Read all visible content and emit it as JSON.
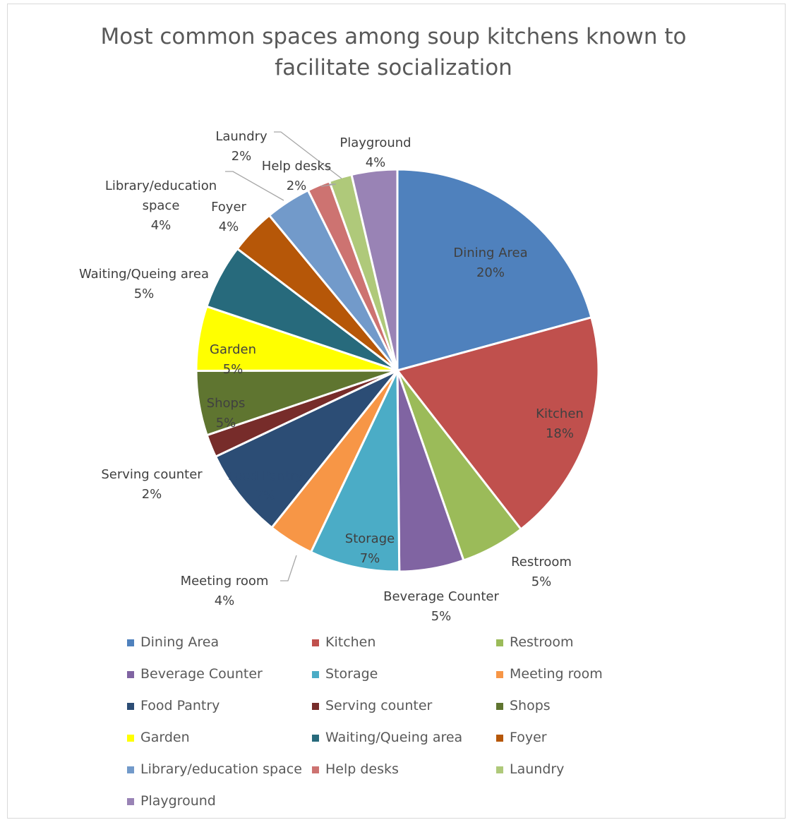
{
  "title_line1": "Most common spaces among soup kitchens known to",
  "title_line2": "facilitate socialization",
  "chart_data": {
    "type": "pie",
    "title": "Most common spaces among soup kitchens known to facilitate socialization",
    "legend_position": "bottom",
    "categories": [
      "Dining Area",
      "Kitchen",
      "Restroom",
      "Beverage Counter",
      "Storage",
      "Meeting room",
      "Food Pantry",
      "Serving counter",
      "Shops",
      "Garden",
      "Waiting/Queing area",
      "Foyer",
      "Library/education space",
      "Help desks",
      "Laundry",
      "Playground"
    ],
    "values": [
      20.4,
      18.4,
      5.1,
      5.1,
      7.1,
      3.6,
      7.1,
      1.8,
      5.1,
      5.1,
      5.1,
      3.6,
      3.6,
      1.8,
      1.8,
      3.6
    ],
    "data_labels": [
      {
        "name": "Dining Area",
        "pct": "20%"
      },
      {
        "name": "Kitchen",
        "pct": "18%"
      },
      {
        "name": "Restroom",
        "pct": "5%"
      },
      {
        "name": "Beverage Counter",
        "pct": "5%"
      },
      {
        "name": "Storage",
        "pct": "7%"
      },
      {
        "name": "Meeting room",
        "pct": "4%"
      },
      {
        "name": "Food Pantry",
        "pct": "7%"
      },
      {
        "name": "Serving counter",
        "pct": "2%"
      },
      {
        "name": "Shops",
        "pct": "5%"
      },
      {
        "name": "Garden",
        "pct": "5%"
      },
      {
        "name": "Waiting/Queing area",
        "pct": "5%"
      },
      {
        "name": "Foyer",
        "pct": "4%"
      },
      {
        "name": "Library/education space",
        "pct": "4%"
      },
      {
        "name": "Help desks",
        "pct": "2%"
      },
      {
        "name": "Laundry",
        "pct": "2%"
      },
      {
        "name": "Playground",
        "pct": "4%"
      }
    ],
    "colors": [
      "#4F81BD",
      "#C0504D",
      "#9BBB59",
      "#8064A2",
      "#4BACC6",
      "#F79646",
      "#2C4D75",
      "#772C2A",
      "#5F7530",
      "#FFFF00",
      "#276A7C",
      "#B65708",
      "#729ACA",
      "#CD7371",
      "#AFC97A",
      "#9983B5"
    ],
    "label_colors": [
      "#404040",
      "#404040",
      "#404040",
      "#404040",
      "#404040",
      "#404040",
      "#2C4D75",
      "#404040",
      "#404040",
      "#404040",
      "#404040",
      "#404040",
      "#404040",
      "#404040",
      "#404040",
      "#404040"
    ]
  }
}
